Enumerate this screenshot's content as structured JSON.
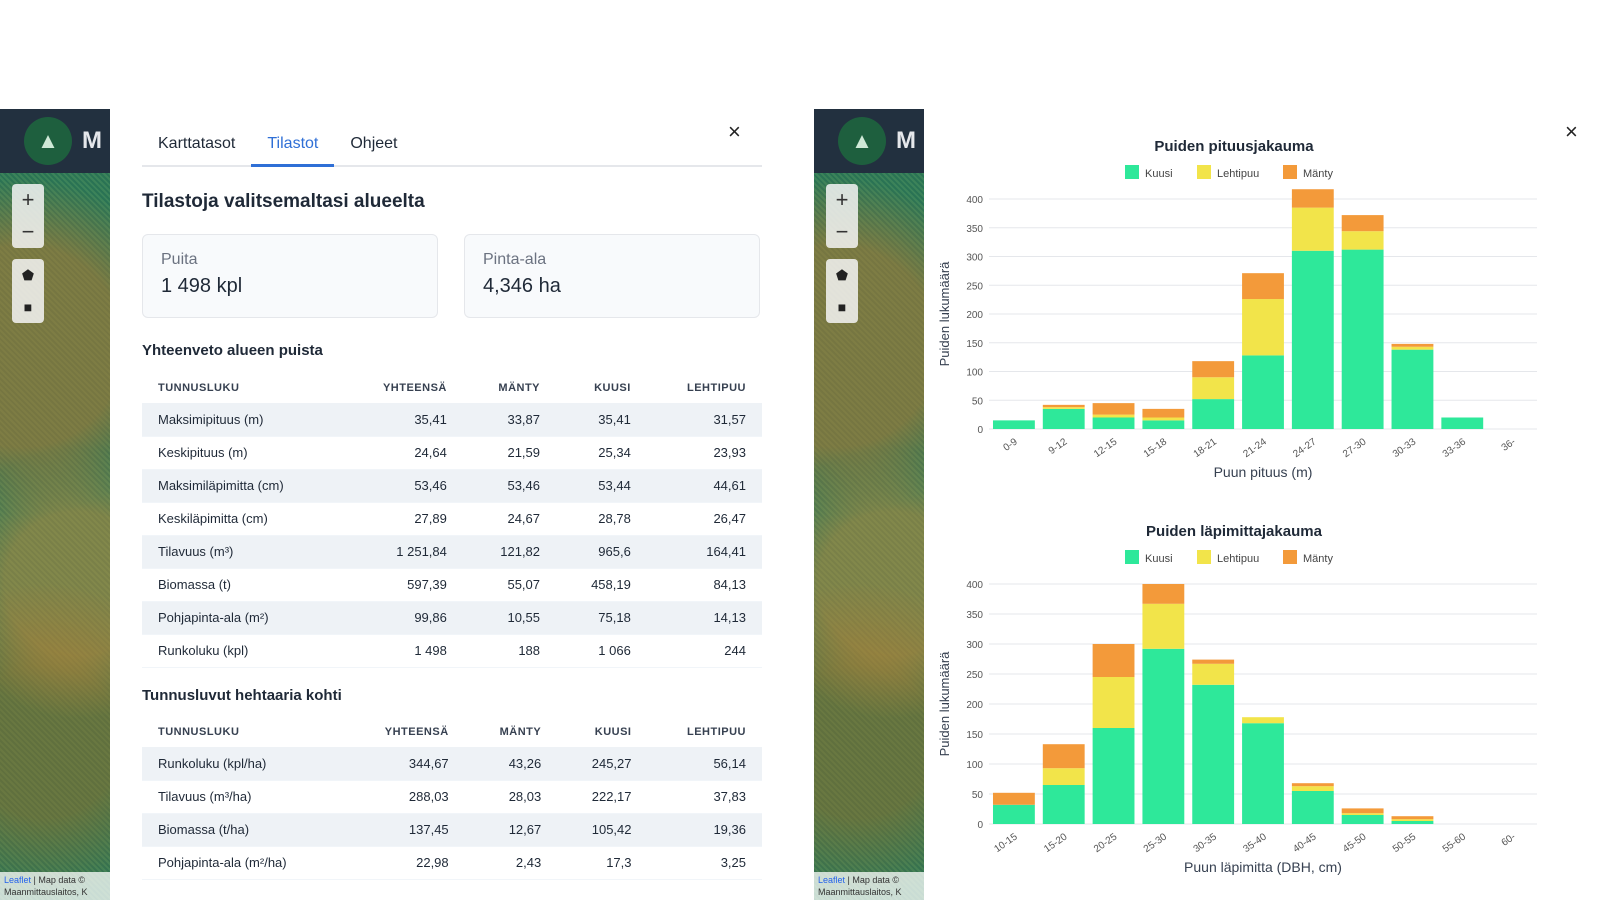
{
  "map": {
    "logo_text": "M",
    "zoom_in": "+",
    "zoom_out": "−",
    "tool_polygon": "⬟",
    "tool_square": "■",
    "attribution_link": "Leaflet",
    "attribution_text": "| Map data ©",
    "attribution_line2": "Maanmittauslaitos, K"
  },
  "panel": {
    "tabs": [
      {
        "label": "Karttatasot"
      },
      {
        "label": "Tilastot"
      },
      {
        "label": "Ohjeet"
      }
    ],
    "close": "×",
    "title": "Tilastoja valitsemaltasi alueelta",
    "cards": [
      {
        "label": "Puita",
        "value": "1 498 kpl"
      },
      {
        "label": "Pinta-ala",
        "value": "4,346 ha"
      }
    ],
    "summary": {
      "title": "Yhteenveto alueen puista",
      "headers": [
        "TUNNUSLUKU",
        "YHTEENSÄ",
        "MÄNTY",
        "KUUSI",
        "LEHTIPUU"
      ],
      "rows": [
        [
          "Maksimipituus (m)",
          "35,41",
          "33,87",
          "35,41",
          "31,57"
        ],
        [
          "Keskipituus (m)",
          "24,64",
          "21,59",
          "25,34",
          "23,93"
        ],
        [
          "Maksimiläpimitta (cm)",
          "53,46",
          "53,46",
          "53,44",
          "44,61"
        ],
        [
          "Keskiläpimitta (cm)",
          "27,89",
          "24,67",
          "28,78",
          "26,47"
        ],
        [
          "Tilavuus (m³)",
          "1 251,84",
          "121,82",
          "965,6",
          "164,41"
        ],
        [
          "Biomassa (t)",
          "597,39",
          "55,07",
          "458,19",
          "84,13"
        ],
        [
          "Pohjapinta-ala (m²)",
          "99,86",
          "10,55",
          "75,18",
          "14,13"
        ],
        [
          "Runkoluku (kpl)",
          "1 498",
          "188",
          "1 066",
          "244"
        ]
      ]
    },
    "per_hectare": {
      "title": "Tunnusluvut hehtaaria kohti",
      "headers": [
        "TUNNUSLUKU",
        "YHTEENSÄ",
        "MÄNTY",
        "KUUSI",
        "LEHTIPUU"
      ],
      "rows": [
        [
          "Runkoluku (kpl/ha)",
          "344,67",
          "43,26",
          "245,27",
          "56,14"
        ],
        [
          "Tilavuus (m³/ha)",
          "288,03",
          "28,03",
          "222,17",
          "37,83"
        ],
        [
          "Biomassa (t/ha)",
          "137,45",
          "12,67",
          "105,42",
          "19,36"
        ],
        [
          "Pohjapinta-ala (m²/ha)",
          "22,98",
          "2,43",
          "17,3",
          "3,25"
        ]
      ]
    }
  },
  "charts_panel": {
    "close": "×"
  },
  "colors": {
    "kuusi": "#2ee89a",
    "lehtipuu": "#f2e44a",
    "manty": "#f39a3a"
  },
  "chart_data": [
    {
      "type": "bar",
      "stacked": true,
      "title": "Puiden pituusjakauma",
      "xlabel": "Puun pituus (m)",
      "ylabel": "Puiden lukumäärä",
      "ylim": [
        0,
        400
      ],
      "yticks": [
        0,
        50,
        100,
        150,
        200,
        250,
        300,
        350,
        400
      ],
      "categories": [
        "0-9",
        "9-12",
        "12-15",
        "15-18",
        "18-21",
        "21-24",
        "24-27",
        "27-30",
        "30-33",
        "33-36",
        "36-"
      ],
      "series": [
        {
          "name": "Kuusi",
          "color": "#2ee89a",
          "values": [
            15,
            35,
            20,
            15,
            52,
            128,
            310,
            312,
            138,
            20,
            0
          ]
        },
        {
          "name": "Lehtipuu",
          "color": "#f2e44a",
          "values": [
            0,
            3,
            5,
            5,
            38,
            98,
            75,
            32,
            5,
            0,
            0
          ]
        },
        {
          "name": "Mänty",
          "color": "#f39a3a",
          "values": [
            0,
            4,
            20,
            15,
            28,
            45,
            32,
            28,
            5,
            0,
            0
          ]
        }
      ],
      "legend": [
        "Kuusi",
        "Lehtipuu",
        "Mänty"
      ]
    },
    {
      "type": "bar",
      "stacked": true,
      "title": "Puiden läpimittajakauma",
      "xlabel": "Puun läpimitta (DBH, cm)",
      "ylabel": "Puiden lukumäärä",
      "ylim": [
        0,
        400
      ],
      "yticks": [
        0,
        50,
        100,
        150,
        200,
        250,
        300,
        350,
        400
      ],
      "categories": [
        "10-15",
        "15-20",
        "20-25",
        "25-30",
        "30-35",
        "35-40",
        "40-45",
        "45-50",
        "50-55",
        "55-60",
        "60-"
      ],
      "series": [
        {
          "name": "Kuusi",
          "color": "#2ee89a",
          "values": [
            32,
            65,
            160,
            292,
            232,
            168,
            55,
            15,
            5,
            0,
            0
          ]
        },
        {
          "name": "Lehtipuu",
          "color": "#f2e44a",
          "values": [
            0,
            28,
            85,
            75,
            35,
            10,
            8,
            3,
            3,
            0,
            0
          ]
        },
        {
          "name": "Mänty",
          "color": "#f39a3a",
          "values": [
            20,
            40,
            55,
            33,
            7,
            0,
            5,
            8,
            5,
            0,
            0
          ]
        }
      ],
      "legend": [
        "Kuusi",
        "Lehtipuu",
        "Mänty"
      ]
    }
  ]
}
